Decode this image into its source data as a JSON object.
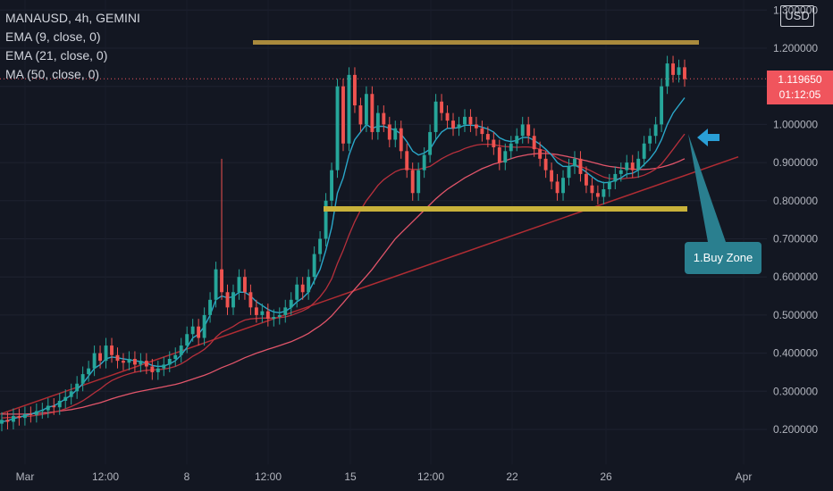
{
  "legend": {
    "title": "MANAUSD, 4h, GEMINI",
    "ema9": "EMA (9, close, 0)",
    "ema21": "EMA (21, close, 0)",
    "ma50": "MA (50, close, 0)"
  },
  "currency_badge": "USD",
  "price_tag": {
    "price": "1.119650",
    "countdown": "01:12:05"
  },
  "annotation": {
    "label": "1.Buy Zone"
  },
  "colors": {
    "background": "#131722",
    "up": "#26a69a",
    "down": "#ef5350",
    "ema9": "#2aa7c9",
    "ema21": "#b7303c",
    "ma50": "#e2556a",
    "resistance": "#a98a3d",
    "support": "#c9b23a",
    "trendline": "#b02c33",
    "annotation": "#2a7f8f",
    "arrow": "#2a9fd6"
  },
  "chart_data": {
    "type": "candlestick",
    "y_axis_ticks": [
      "1.300000",
      "1.200000",
      "1.000000",
      "0.900000",
      "0.800000",
      "0.700000",
      "0.600000",
      "0.500000",
      "0.400000",
      "0.300000",
      "0.200000"
    ],
    "x_axis_ticks": [
      "Mar",
      "12:00",
      "8",
      "12:00",
      "15",
      "12:00",
      "22",
      "26",
      "Apr"
    ],
    "ylim": [
      0.16,
      1.3
    ],
    "last_price": 1.11965,
    "candles": [
      [
        0.215,
        0.225
      ],
      [
        0.225,
        0.22
      ],
      [
        0.22,
        0.235
      ],
      [
        0.235,
        0.23
      ],
      [
        0.23,
        0.24
      ],
      [
        0.24,
        0.238
      ],
      [
        0.238,
        0.248
      ],
      [
        0.248,
        0.25
      ],
      [
        0.25,
        0.262
      ],
      [
        0.262,
        0.258
      ],
      [
        0.258,
        0.275
      ],
      [
        0.275,
        0.285
      ],
      [
        0.285,
        0.3
      ],
      [
        0.3,
        0.32
      ],
      [
        0.32,
        0.345
      ],
      [
        0.345,
        0.36
      ],
      [
        0.36,
        0.4
      ],
      [
        0.4,
        0.38
      ],
      [
        0.38,
        0.42
      ],
      [
        0.42,
        0.395
      ],
      [
        0.395,
        0.38
      ],
      [
        0.38,
        0.375
      ],
      [
        0.375,
        0.385
      ],
      [
        0.385,
        0.37
      ],
      [
        0.37,
        0.38
      ],
      [
        0.38,
        0.365
      ],
      [
        0.365,
        0.35
      ],
      [
        0.35,
        0.36
      ],
      [
        0.36,
        0.37
      ],
      [
        0.37,
        0.385
      ],
      [
        0.385,
        0.395
      ],
      [
        0.395,
        0.42
      ],
      [
        0.42,
        0.45
      ],
      [
        0.45,
        0.47
      ],
      [
        0.47,
        0.44
      ],
      [
        0.44,
        0.5
      ],
      [
        0.5,
        0.54
      ],
      [
        0.54,
        0.62
      ],
      [
        0.62,
        0.56
      ],
      [
        0.56,
        0.52
      ],
      [
        0.52,
        0.56
      ],
      [
        0.56,
        0.6
      ],
      [
        0.6,
        0.56
      ],
      [
        0.56,
        0.52
      ],
      [
        0.52,
        0.5
      ],
      [
        0.5,
        0.51
      ],
      [
        0.51,
        0.49
      ],
      [
        0.49,
        0.495
      ],
      [
        0.495,
        0.5
      ],
      [
        0.5,
        0.52
      ],
      [
        0.52,
        0.54
      ],
      [
        0.54,
        0.58
      ],
      [
        0.58,
        0.56
      ],
      [
        0.56,
        0.6
      ],
      [
        0.6,
        0.66
      ],
      [
        0.66,
        0.7
      ],
      [
        0.7,
        0.8
      ],
      [
        0.8,
        0.88
      ],
      [
        0.88,
        1.1
      ],
      [
        1.1,
        0.95
      ],
      [
        0.95,
        1.13
      ],
      [
        1.13,
        1.05
      ],
      [
        1.05,
        1.0
      ],
      [
        1.0,
        1.08
      ],
      [
        1.08,
        0.98
      ],
      [
        0.98,
        1.03
      ],
      [
        1.03,
        1.0
      ],
      [
        1.0,
        0.96
      ],
      [
        0.96,
        0.99
      ],
      [
        0.99,
        0.93
      ],
      [
        0.93,
        0.88
      ],
      [
        0.88,
        0.82
      ],
      [
        0.82,
        0.88
      ],
      [
        0.88,
        0.92
      ],
      [
        0.92,
        0.98
      ],
      [
        0.98,
        1.06
      ],
      [
        1.06,
        1.03
      ],
      [
        1.03,
        1.01
      ],
      [
        1.01,
        0.99
      ],
      [
        0.99,
        1.0
      ],
      [
        1.0,
        1.02
      ],
      [
        1.02,
        1.0
      ],
      [
        1.0,
        0.99
      ],
      [
        0.99,
        0.975
      ],
      [
        0.975,
        0.96
      ],
      [
        0.96,
        0.94
      ],
      [
        0.94,
        0.9
      ],
      [
        0.9,
        0.93
      ],
      [
        0.93,
        0.95
      ],
      [
        0.95,
        0.97
      ],
      [
        0.97,
        1.0
      ],
      [
        1.0,
        0.97
      ],
      [
        0.97,
        0.935
      ],
      [
        0.935,
        0.91
      ],
      [
        0.91,
        0.88
      ],
      [
        0.88,
        0.85
      ],
      [
        0.85,
        0.82
      ],
      [
        0.82,
        0.86
      ],
      [
        0.86,
        0.89
      ],
      [
        0.89,
        0.91
      ],
      [
        0.91,
        0.87
      ],
      [
        0.87,
        0.84
      ],
      [
        0.84,
        0.82
      ],
      [
        0.82,
        0.81
      ],
      [
        0.81,
        0.83
      ],
      [
        0.83,
        0.85
      ],
      [
        0.85,
        0.87
      ],
      [
        0.87,
        0.88
      ],
      [
        0.88,
        0.9
      ],
      [
        0.9,
        0.88
      ],
      [
        0.88,
        0.91
      ],
      [
        0.91,
        0.95
      ],
      [
        0.95,
        0.97
      ],
      [
        0.97,
        1.0
      ],
      [
        1.0,
        1.1
      ],
      [
        1.1,
        1.16
      ],
      [
        1.16,
        1.13
      ],
      [
        1.13,
        1.15
      ],
      [
        1.15,
        1.119
      ]
    ],
    "spike": {
      "index": 38,
      "high": 0.91
    },
    "ema9": [
      0.22,
      0.223,
      0.228,
      0.232,
      0.236,
      0.24,
      0.245,
      0.25,
      0.258,
      0.262,
      0.27,
      0.28,
      0.29,
      0.305,
      0.32,
      0.34,
      0.36,
      0.37,
      0.385,
      0.39,
      0.388,
      0.385,
      0.383,
      0.38,
      0.378,
      0.374,
      0.368,
      0.365,
      0.366,
      0.372,
      0.38,
      0.395,
      0.415,
      0.44,
      0.45,
      0.47,
      0.5,
      0.54,
      0.55,
      0.545,
      0.548,
      0.56,
      0.56,
      0.55,
      0.535,
      0.525,
      0.515,
      0.508,
      0.506,
      0.51,
      0.52,
      0.535,
      0.545,
      0.56,
      0.59,
      0.62,
      0.67,
      0.73,
      0.82,
      0.86,
      0.92,
      0.96,
      0.98,
      1.0,
      0.99,
      0.995,
      0.995,
      0.99,
      0.985,
      0.975,
      0.955,
      0.93,
      0.92,
      0.925,
      0.935,
      0.96,
      0.98,
      0.99,
      0.99,
      0.992,
      0.998,
      0.998,
      0.997,
      0.993,
      0.988,
      0.98,
      0.965,
      0.958,
      0.955,
      0.958,
      0.966,
      0.966,
      0.958,
      0.948,
      0.935,
      0.92,
      0.9,
      0.89,
      0.89,
      0.893,
      0.886,
      0.875,
      0.863,
      0.852,
      0.847,
      0.848,
      0.853,
      0.86,
      0.87,
      0.872,
      0.88,
      0.895,
      0.91,
      0.93,
      0.96,
      1.0,
      1.03,
      1.05,
      1.07
    ],
    "ema21": [
      0.23,
      0.231,
      0.232,
      0.233,
      0.234,
      0.235,
      0.237,
      0.239,
      0.242,
      0.245,
      0.249,
      0.254,
      0.26,
      0.267,
      0.275,
      0.285,
      0.296,
      0.306,
      0.318,
      0.328,
      0.335,
      0.341,
      0.346,
      0.35,
      0.353,
      0.355,
      0.356,
      0.357,
      0.358,
      0.361,
      0.365,
      0.372,
      0.381,
      0.392,
      0.4,
      0.41,
      0.424,
      0.442,
      0.455,
      0.462,
      0.47,
      0.48,
      0.487,
      0.49,
      0.491,
      0.492,
      0.492,
      0.492,
      0.493,
      0.495,
      0.499,
      0.505,
      0.511,
      0.519,
      0.532,
      0.548,
      0.568,
      0.595,
      0.635,
      0.67,
      0.71,
      0.745,
      0.775,
      0.8,
      0.82,
      0.84,
      0.855,
      0.866,
      0.876,
      0.882,
      0.884,
      0.882,
      0.882,
      0.886,
      0.89,
      0.9,
      0.91,
      0.918,
      0.925,
      0.93,
      0.937,
      0.942,
      0.946,
      0.948,
      0.948,
      0.947,
      0.944,
      0.942,
      0.941,
      0.94,
      0.941,
      0.941,
      0.939,
      0.935,
      0.93,
      0.922,
      0.912,
      0.904,
      0.898,
      0.895,
      0.89,
      0.884,
      0.877,
      0.869,
      0.862,
      0.858,
      0.857,
      0.857,
      0.859,
      0.86,
      0.862,
      0.867,
      0.874,
      0.883,
      0.896,
      0.915,
      0.935,
      0.955,
      0.975
    ],
    "ma50": [
      0.24,
      0.24,
      0.24,
      0.24,
      0.24,
      0.241,
      0.242,
      0.243,
      0.244,
      0.246,
      0.248,
      0.25,
      0.252,
      0.255,
      0.258,
      0.262,
      0.266,
      0.27,
      0.275,
      0.28,
      0.285,
      0.289,
      0.293,
      0.297,
      0.3,
      0.303,
      0.306,
      0.309,
      0.312,
      0.315,
      0.318,
      0.322,
      0.327,
      0.332,
      0.337,
      0.342,
      0.348,
      0.355,
      0.362,
      0.368,
      0.374,
      0.381,
      0.388,
      0.394,
      0.4,
      0.405,
      0.41,
      0.415,
      0.42,
      0.425,
      0.43,
      0.437,
      0.444,
      0.452,
      0.462,
      0.472,
      0.484,
      0.498,
      0.515,
      0.532,
      0.55,
      0.568,
      0.585,
      0.602,
      0.62,
      0.64,
      0.66,
      0.68,
      0.7,
      0.715,
      0.73,
      0.745,
      0.76,
      0.775,
      0.79,
      0.805,
      0.818,
      0.83,
      0.84,
      0.85,
      0.86,
      0.868,
      0.876,
      0.884,
      0.89,
      0.896,
      0.9,
      0.905,
      0.91,
      0.915,
      0.918,
      0.921,
      0.923,
      0.924,
      0.924,
      0.923,
      0.921,
      0.918,
      0.915,
      0.912,
      0.908,
      0.905,
      0.901,
      0.897,
      0.893,
      0.89,
      0.888,
      0.886,
      0.884,
      0.883,
      0.882,
      0.882,
      0.883,
      0.885,
      0.888,
      0.892,
      0.897,
      0.903,
      0.91
    ]
  }
}
